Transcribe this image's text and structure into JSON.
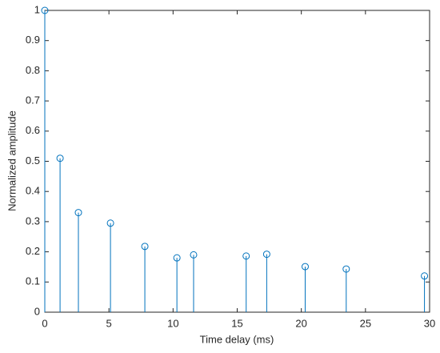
{
  "chart_data": {
    "type": "stem",
    "x_label": "Time delay (ms)",
    "y_label": "Normalized amplitude",
    "x": [
      0,
      1.19,
      2.62,
      5.12,
      7.8,
      10.3,
      11.6,
      15.7,
      17.3,
      20.3,
      23.5,
      29.6
    ],
    "values": [
      1,
      0.51,
      0.33,
      0.295,
      0.218,
      0.18,
      0.19,
      0.186,
      0.192,
      0.151,
      0.143,
      0.12
    ],
    "color": "#0072bd",
    "xlim": [
      0,
      30
    ],
    "xticks": [
      0,
      5,
      10,
      15,
      20,
      25,
      30
    ],
    "ylim": [
      0,
      1
    ],
    "yticks": [
      0,
      0.1,
      0.2,
      0.3,
      0.4,
      0.5,
      0.6,
      0.7,
      0.8,
      0.9,
      1
    ],
    "grid": false
  }
}
